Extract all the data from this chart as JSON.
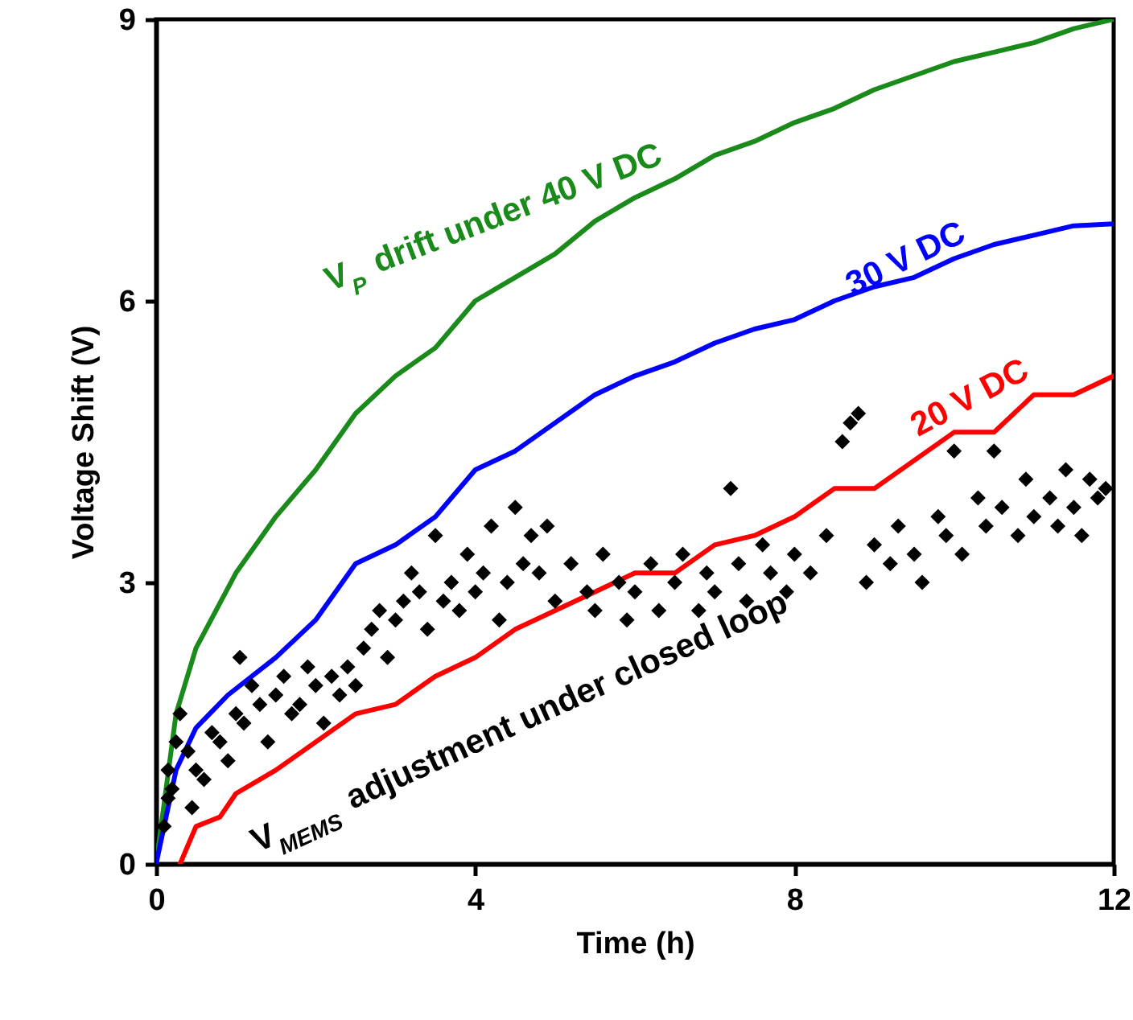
{
  "chart_data": {
    "type": "line",
    "xlabel": "Time (h)",
    "ylabel": "Voltage Shift (V)",
    "xlim": [
      0,
      12
    ],
    "ylim": [
      0,
      9
    ],
    "xticks": [
      0,
      4,
      8,
      12
    ],
    "yticks": [
      0,
      3,
      6,
      9
    ],
    "grid": false,
    "line_style": "solid",
    "series": [
      {
        "name": "V$_{P}$ drift under 40 V DC",
        "type": "line",
        "color": "#1a8a1a",
        "x": [
          0,
          0.25,
          0.5,
          1,
          1.5,
          2,
          2.5,
          3,
          3.5,
          4,
          4.5,
          5,
          5.5,
          6,
          6.5,
          7,
          7.5,
          8,
          8.5,
          9,
          9.5,
          10,
          10.5,
          11,
          11.5,
          12
        ],
        "values": [
          0,
          1.6,
          2.3,
          3.1,
          3.7,
          4.2,
          4.8,
          5.2,
          5.5,
          6.0,
          6.25,
          6.5,
          6.85,
          7.1,
          7.3,
          7.55,
          7.7,
          7.9,
          8.05,
          8.25,
          8.4,
          8.55,
          8.65,
          8.75,
          8.9,
          9.0
        ]
      },
      {
        "name": "30 V DC",
        "type": "line",
        "color": "#0000ff",
        "x": [
          0,
          0.25,
          0.5,
          0.9,
          1.5,
          2,
          2.5,
          3,
          3.5,
          4,
          4.5,
          5,
          5.5,
          6,
          6.5,
          7,
          7.5,
          8,
          8.5,
          9,
          9.5,
          10,
          10.5,
          11,
          11.5,
          12
        ],
        "values": [
          0,
          1.0,
          1.45,
          1.8,
          2.2,
          2.6,
          3.2,
          3.4,
          3.7,
          4.2,
          4.4,
          4.7,
          5.0,
          5.2,
          5.35,
          5.55,
          5.7,
          5.8,
          6.0,
          6.15,
          6.25,
          6.45,
          6.6,
          6.7,
          6.8,
          6.82
        ]
      },
      {
        "name": "20 V DC",
        "type": "line",
        "color": "#ff0000",
        "x": [
          0.3,
          0.5,
          0.8,
          1,
          1.5,
          2,
          2.5,
          3,
          3.5,
          4,
          4.5,
          5,
          5.5,
          6,
          6.5,
          7,
          7.5,
          8,
          8.5,
          9,
          9.5,
          10,
          10.5,
          11,
          11.5,
          12
        ],
        "values": [
          0,
          0.4,
          0.5,
          0.75,
          1.0,
          1.3,
          1.6,
          1.7,
          2.0,
          2.2,
          2.5,
          2.7,
          2.9,
          3.1,
          3.1,
          3.4,
          3.5,
          3.7,
          4.0,
          4.0,
          4.3,
          4.6,
          4.6,
          5.0,
          5.0,
          5.2
        ]
      },
      {
        "name": "V$_{MEMS}$ adjustment under closed loop",
        "type": "scatter",
        "marker": "diamond",
        "color": "#000000",
        "x": [
          0.1,
          0.15,
          0.15,
          0.2,
          0.25,
          0.3,
          0.4,
          0.45,
          0.5,
          0.6,
          0.7,
          0.8,
          0.9,
          1.0,
          1.05,
          1.1,
          1.2,
          1.3,
          1.4,
          1.5,
          1.6,
          1.7,
          1.8,
          1.9,
          2.0,
          2.1,
          2.2,
          2.3,
          2.4,
          2.5,
          2.6,
          2.7,
          2.8,
          2.9,
          3.0,
          3.1,
          3.2,
          3.3,
          3.4,
          3.5,
          3.6,
          3.7,
          3.8,
          3.9,
          4.0,
          4.1,
          4.2,
          4.3,
          4.4,
          4.5,
          4.6,
          4.7,
          4.8,
          4.9,
          5.0,
          5.2,
          5.4,
          5.5,
          5.6,
          5.8,
          5.9,
          6.0,
          6.2,
          6.3,
          6.5,
          6.6,
          6.8,
          6.9,
          7.0,
          7.2,
          7.3,
          7.4,
          7.6,
          7.7,
          7.9,
          8.0,
          8.2,
          8.4,
          8.6,
          8.7,
          8.8,
          8.9,
          9.0,
          9.2,
          9.3,
          9.5,
          9.6,
          9.8,
          9.9,
          10.0,
          10.1,
          10.3,
          10.4,
          10.5,
          10.6,
          10.8,
          10.9,
          11.0,
          11.2,
          11.3,
          11.4,
          11.5,
          11.6,
          11.7,
          11.8,
          11.9
        ],
        "values": [
          0.4,
          0.7,
          1.0,
          0.8,
          1.3,
          1.6,
          1.2,
          0.6,
          1.0,
          0.9,
          1.4,
          1.3,
          1.1,
          1.6,
          2.2,
          1.5,
          1.9,
          1.7,
          1.3,
          1.8,
          2.0,
          1.6,
          1.7,
          2.1,
          1.9,
          1.5,
          2.0,
          1.8,
          2.1,
          1.9,
          2.3,
          2.5,
          2.7,
          2.2,
          2.6,
          2.8,
          3.1,
          2.9,
          2.5,
          3.5,
          2.8,
          3.0,
          2.7,
          3.3,
          2.9,
          3.1,
          3.6,
          2.6,
          3.0,
          3.8,
          3.2,
          3.5,
          3.1,
          3.6,
          2.8,
          3.2,
          2.9,
          2.7,
          3.3,
          3.0,
          2.6,
          2.9,
          3.2,
          2.7,
          3.0,
          3.3,
          2.7,
          3.1,
          2.9,
          4.0,
          3.2,
          2.8,
          3.4,
          3.1,
          2.9,
          3.3,
          3.1,
          3.5,
          4.5,
          4.7,
          4.8,
          3.0,
          3.4,
          3.2,
          3.6,
          3.3,
          3.0,
          3.7,
          3.5,
          4.4,
          3.3,
          3.9,
          3.6,
          4.4,
          3.8,
          3.5,
          4.1,
          3.7,
          3.9,
          3.6,
          4.2,
          3.8,
          3.5,
          4.1,
          3.9,
          4.0
        ]
      }
    ]
  }
}
